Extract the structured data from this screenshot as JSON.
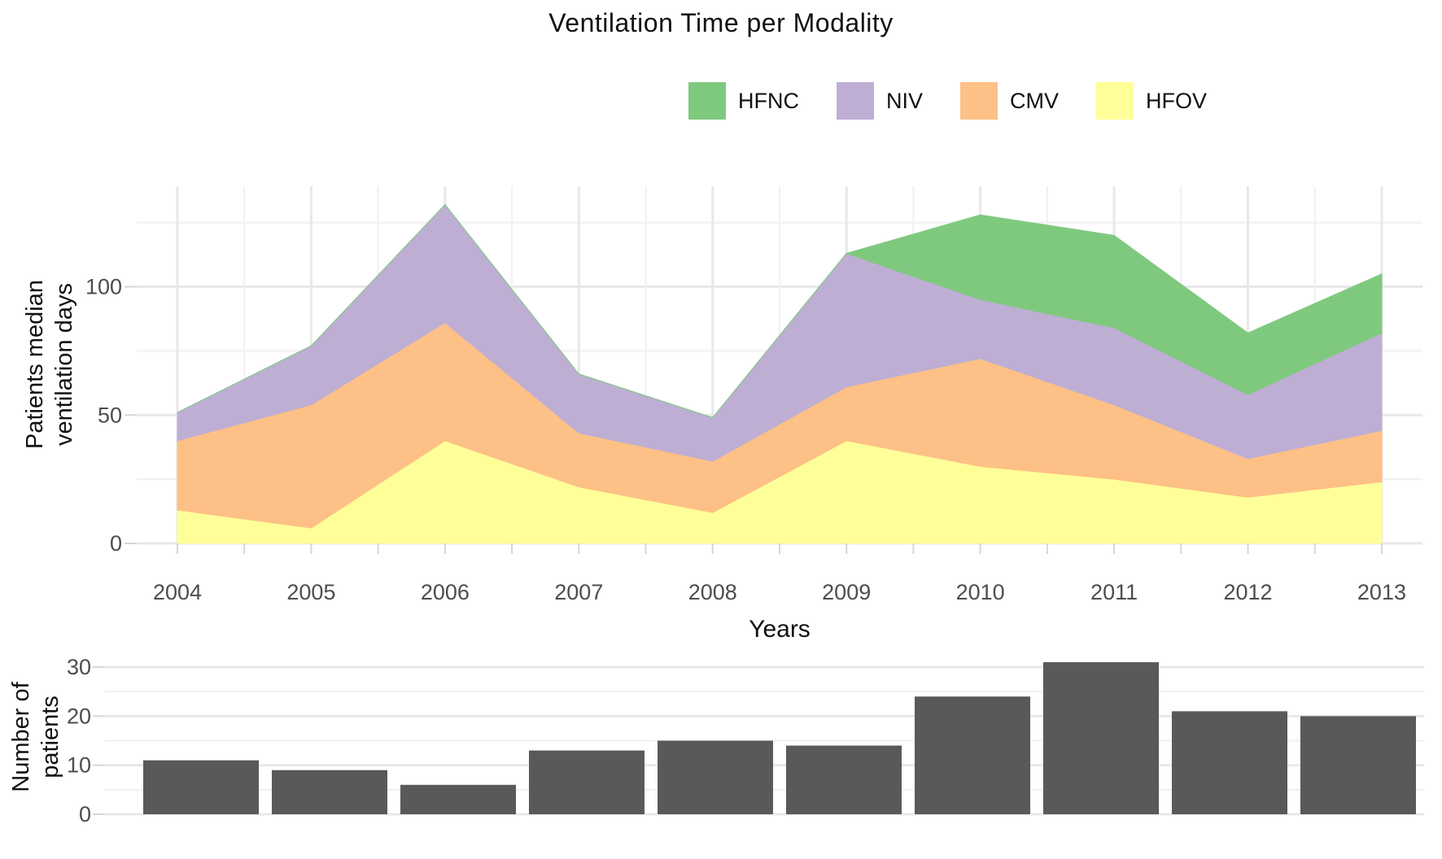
{
  "title": "Ventilation Time per Modality",
  "legend": {
    "position": "top-right",
    "items": [
      {
        "label": "HFNC",
        "color": "#7FC97F"
      },
      {
        "label": "NIV",
        "color": "#BEAED4"
      },
      {
        "label": "CMV",
        "color": "#FDC086"
      },
      {
        "label": "HFOV",
        "color": "#FFFF99"
      }
    ]
  },
  "chart_data": [
    {
      "type": "area",
      "stacked": true,
      "title": "Ventilation Time per Modality",
      "x": [
        2004,
        2005,
        2006,
        2007,
        2008,
        2009,
        2010,
        2011,
        2012,
        2013
      ],
      "xlabel": "Years",
      "ylabel": "Patients median ventilation days",
      "ylabel_lines": [
        "Patients median",
        "ventilation days"
      ],
      "yticks": [
        0,
        50,
        100
      ],
      "ylim": [
        0,
        139
      ],
      "grid": true,
      "gridline_step_minor": 25,
      "legend_position": "top-right",
      "series": [
        {
          "name": "HFOV",
          "color": "#FFFF99",
          "values": [
            13,
            6,
            40,
            22,
            12,
            40,
            30,
            25,
            18,
            24
          ]
        },
        {
          "name": "CMV",
          "color": "#FDC086",
          "values": [
            27,
            48,
            46,
            21,
            20,
            21,
            42,
            29,
            15,
            20
          ]
        },
        {
          "name": "NIV",
          "color": "#BEAED4",
          "values": [
            11,
            23,
            46,
            23,
            17,
            52,
            23,
            30,
            25,
            38
          ]
        },
        {
          "name": "HFNC",
          "color": "#7FC97F",
          "values": [
            0,
            0,
            0,
            0,
            0,
            0,
            33,
            36,
            24,
            23
          ]
        }
      ],
      "stacked_totals": [
        51,
        77,
        132,
        66,
        49,
        113,
        128,
        120,
        82,
        105
      ]
    },
    {
      "type": "bar",
      "categories": [
        2004,
        2005,
        2006,
        2007,
        2008,
        2009,
        2010,
        2011,
        2012,
        2013
      ],
      "values": [
        11,
        9,
        6,
        13,
        15,
        14,
        24,
        31,
        21,
        20
      ],
      "ylabel": "Number of patients",
      "ylabel_lines": [
        "Number of",
        "patients"
      ],
      "yticks": [
        0,
        10,
        20,
        30
      ],
      "ylim": [
        0,
        33
      ],
      "bar_color": "#595959",
      "grid": true
    }
  ],
  "colors": {
    "grid_major": "#E8E8E8",
    "grid_minor": "#F1F1F1",
    "tick_mark": "#D6D6D6",
    "tick_text": "#4D4D4D",
    "title_text": "#111111"
  }
}
